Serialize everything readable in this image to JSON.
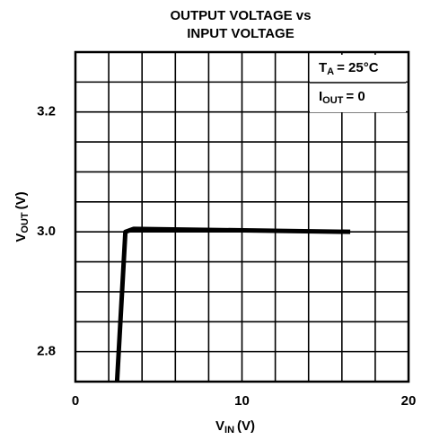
{
  "chart_data": {
    "type": "line",
    "title": [
      "OUTPUT VOLTAGE vs",
      "INPUT VOLTAGE"
    ],
    "ylabel": [
      "V",
      "OUT",
      "(V)"
    ],
    "xlabel": [
      "V",
      "IN",
      "(V)"
    ],
    "annotations": [
      [
        "T",
        "A",
        "= 25°C"
      ],
      [
        "I",
        "OUT",
        "= 0"
      ]
    ],
    "x": [
      2.5,
      3.0,
      3.5,
      16.5
    ],
    "values": [
      2.75,
      3.0,
      3.005,
      3.0
    ],
    "color": "#000000",
    "xlim": [
      0,
      20
    ],
    "ylim": [
      2.75,
      3.3
    ],
    "xticks": [
      0,
      10,
      20
    ],
    "yticks": [
      2.8,
      {
        "value": 3,
        "label": "3.0"
      },
      3.2
    ],
    "xgrid": [
      0,
      2,
      4,
      6,
      8,
      10,
      12,
      14,
      16,
      18,
      20
    ],
    "ygrid": [
      2.75,
      2.8,
      2.85,
      2.9,
      2.95,
      3.0,
      3.05,
      3.1,
      3.15,
      3.2,
      3.25,
      3.3
    ],
    "grid": true
  }
}
